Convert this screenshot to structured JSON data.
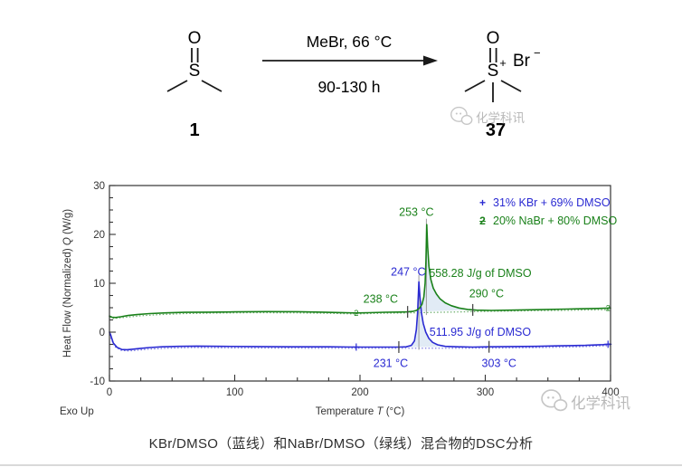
{
  "scheme": {
    "reactant": {
      "o": "O",
      "s": "S",
      "label": "1"
    },
    "conditions": {
      "above": "MeBr, 66 °C",
      "below": "90-130 h"
    },
    "product": {
      "o": "O",
      "s": "S",
      "charge": "+",
      "counterion": "Br",
      "counterion_charge": "−",
      "label": "37"
    }
  },
  "watermark": {
    "text": "化学科讯"
  },
  "caption": {
    "text": "KBr/DMSO（蓝线）和NaBr/DMSO（绿线）混合物的DSC分析"
  },
  "chart": {
    "exo_label": "Exo Up",
    "xlabel_pre": "Temperature ",
    "xlabel_var": "T",
    "xlabel_post": " (°C)",
    "ylabel_pre": "Heat Flow (Normalized) ",
    "ylabel_var": "Q",
    "ylabel_post": "  (W/g)",
    "legend": [
      {
        "marker": "+",
        "label": "31% KBr + 69% DMSO"
      },
      {
        "marker": "2",
        "label": "20% NaBr + 80% DMSO"
      }
    ]
  },
  "chart_data": {
    "type": "line",
    "title": "",
    "xlabel": "Temperature T (°C)",
    "ylabel": "Heat Flow (Normalized) Q (W/g)",
    "exo_direction": "Exo Up",
    "xlim": [
      0,
      400
    ],
    "ylim": [
      -10,
      30
    ],
    "x_major": 100,
    "x_minor": 25,
    "y_major": 10,
    "y_minor": 2.5,
    "x_tick_labels": [
      "0",
      "100",
      "200",
      "300",
      "400"
    ],
    "y_tick_labels": [
      "-10",
      "0",
      "10",
      "20",
      "30"
    ],
    "grid": false,
    "legend_position": "top-right-inside",
    "axis_color": "#333333",
    "fill_color": "#d9e6f3",
    "series": [
      {
        "name": "31% KBr + 69% DMSO",
        "color": "#2a2ad2",
        "marker": "+",
        "peak_c": 247,
        "onset_c": 231,
        "end_c": 303,
        "enthalpy": "511.95 J/g of DMSO",
        "points": [
          [
            0,
            0
          ],
          [
            1,
            -0.6
          ],
          [
            3,
            -2.2
          ],
          [
            6,
            -3.1
          ],
          [
            10,
            -3.55
          ],
          [
            14,
            -3.6
          ],
          [
            18,
            -3.5
          ],
          [
            24,
            -3.35
          ],
          [
            32,
            -3.15
          ],
          [
            42,
            -3.0
          ],
          [
            55,
            -2.9
          ],
          [
            70,
            -2.85
          ],
          [
            90,
            -2.9
          ],
          [
            115,
            -2.95
          ],
          [
            145,
            -3.0
          ],
          [
            175,
            -3.0
          ],
          [
            197,
            -3.05
          ],
          [
            215,
            -3.05
          ],
          [
            231,
            -3.05
          ],
          [
            237,
            -3.0
          ],
          [
            241,
            -2.7
          ],
          [
            243.5,
            -1.8
          ],
          [
            245,
            0.5
          ],
          [
            246,
            4.0
          ],
          [
            247,
            10.3
          ],
          [
            247.8,
            7.5
          ],
          [
            249,
            4.0
          ],
          [
            250.5,
            1.8
          ],
          [
            252.5,
            0.0
          ],
          [
            255,
            -1.3
          ],
          [
            258,
            -2.1
          ],
          [
            262,
            -2.6
          ],
          [
            268,
            -2.9
          ],
          [
            278,
            -3.0
          ],
          [
            290,
            -3.05
          ],
          [
            303,
            -3.0
          ],
          [
            320,
            -2.95
          ],
          [
            340,
            -2.9
          ],
          [
            360,
            -2.8
          ],
          [
            380,
            -2.7
          ],
          [
            394,
            -2.55
          ],
          [
            400,
            -2.45
          ]
        ]
      },
      {
        "name": "20% NaBr + 80% DMSO",
        "color": "#1a811a",
        "marker": "2",
        "peak_c": 253,
        "onset_c": 238,
        "end_c": 290,
        "enthalpy": "558.28 J/g of DMSO",
        "points": [
          [
            0,
            3.3
          ],
          [
            2,
            3.05
          ],
          [
            5,
            3.0
          ],
          [
            9,
            3.15
          ],
          [
            15,
            3.4
          ],
          [
            22,
            3.6
          ],
          [
            32,
            3.8
          ],
          [
            45,
            3.95
          ],
          [
            60,
            4.05
          ],
          [
            80,
            4.1
          ],
          [
            100,
            4.15
          ],
          [
            125,
            4.2
          ],
          [
            150,
            4.18
          ],
          [
            170,
            4.1
          ],
          [
            185,
            4.0
          ],
          [
            197,
            3.92
          ],
          [
            207,
            3.98
          ],
          [
            220,
            4.07
          ],
          [
            232,
            4.12
          ],
          [
            238,
            4.15
          ],
          [
            242,
            4.25
          ],
          [
            245,
            4.45
          ],
          [
            247.5,
            4.9
          ],
          [
            249.5,
            5.7
          ],
          [
            251,
            7.2
          ],
          [
            252,
            10.0
          ],
          [
            252.6,
            14.5
          ],
          [
            253.3,
            22.0
          ],
          [
            254,
            17.5
          ],
          [
            255,
            13.5
          ],
          [
            256.5,
            10.8
          ],
          [
            258.5,
            9.0
          ],
          [
            261,
            7.8
          ],
          [
            264,
            6.8
          ],
          [
            268,
            6.0
          ],
          [
            273,
            5.4
          ],
          [
            279,
            4.95
          ],
          [
            286,
            4.65
          ],
          [
            293,
            4.5
          ],
          [
            305,
            4.45
          ],
          [
            320,
            4.5
          ],
          [
            340,
            4.6
          ],
          [
            365,
            4.72
          ],
          [
            390,
            4.85
          ],
          [
            400,
            4.95
          ]
        ]
      }
    ],
    "baselines": [
      {
        "series": 0,
        "points": [
          [
            0,
            -0.5
          ],
          [
            4,
            -2.9
          ],
          [
            9,
            -3.7
          ],
          [
            14,
            -3.85
          ],
          [
            20,
            -3.75
          ],
          [
            30,
            -3.5
          ],
          [
            45,
            -3.3
          ],
          [
            65,
            -3.15
          ],
          [
            90,
            -3.2
          ],
          [
            130,
            -3.25
          ],
          [
            175,
            -3.3
          ],
          [
            220,
            -3.3
          ],
          [
            270,
            -3.3
          ],
          [
            310,
            -3.25
          ],
          [
            345,
            -3.15
          ],
          [
            375,
            -3.0
          ],
          [
            395,
            -2.8
          ],
          [
            400,
            -2.75
          ]
        ]
      },
      {
        "series": 1,
        "points": [
          [
            0,
            3.05
          ],
          [
            3,
            2.8
          ],
          [
            8,
            2.9
          ],
          [
            15,
            3.1
          ],
          [
            25,
            3.35
          ],
          [
            40,
            3.6
          ],
          [
            60,
            3.8
          ],
          [
            85,
            3.9
          ],
          [
            115,
            3.98
          ],
          [
            150,
            3.95
          ],
          [
            175,
            3.85
          ],
          [
            197,
            3.72
          ],
          [
            215,
            3.85
          ],
          [
            240,
            3.95
          ],
          [
            270,
            4.1
          ],
          [
            300,
            4.25
          ],
          [
            330,
            4.35
          ],
          [
            360,
            4.45
          ],
          [
            385,
            4.55
          ],
          [
            400,
            4.6
          ]
        ]
      }
    ],
    "fills": [
      {
        "series": 0,
        "from": 231,
        "to": 303
      },
      {
        "series": 1,
        "from": 238,
        "to": 290
      }
    ],
    "peak_lines": [
      {
        "x": 247,
        "y1": -3.6,
        "y2": 11.7
      },
      {
        "x": 253,
        "y1": 3.5,
        "y2": 23.2
      }
    ],
    "curve_ticks": [
      {
        "series": 0,
        "x": 231,
        "y": -3.05
      },
      {
        "series": 0,
        "x": 303,
        "y": -3.0
      },
      {
        "series": 1,
        "x": 238,
        "y": 4.15
      },
      {
        "series": 1,
        "x": 290,
        "y": 4.55
      }
    ],
    "marker_ts": [
      197,
      398
    ],
    "annotations": [
      {
        "x": 245,
        "y": 24.5,
        "text": "253 °C",
        "series": 1
      },
      {
        "x": 238.5,
        "y": 12.3,
        "text": "247 °C",
        "series": 0
      },
      {
        "x": 296,
        "y": 12.0,
        "text": "558.28 J/g of DMSO",
        "series": 1
      },
      {
        "x": 216.5,
        "y": 6.8,
        "text": "238 °C",
        "series": 1
      },
      {
        "x": 301,
        "y": 7.9,
        "text": "290 °C",
        "series": 1
      },
      {
        "x": 296,
        "y": 0.0,
        "text": "511.95 J/g of DMSO",
        "series": 0
      },
      {
        "x": 224.5,
        "y": -6.4,
        "text": "231 °C",
        "series": 0
      },
      {
        "x": 311,
        "y": -6.4,
        "text": "303 °C",
        "series": 0
      }
    ]
  }
}
